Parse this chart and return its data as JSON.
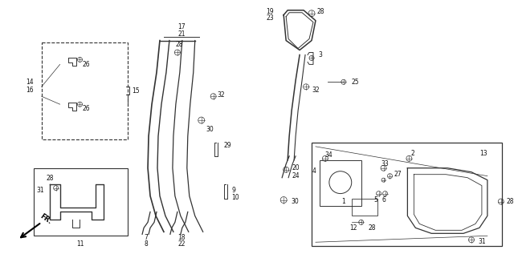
{
  "bg_color": "#ffffff",
  "fig_width": 6.4,
  "fig_height": 3.17,
  "dpi": 100,
  "line_color": "#333333",
  "label_color": "#111111",
  "label_fs": 5.5
}
